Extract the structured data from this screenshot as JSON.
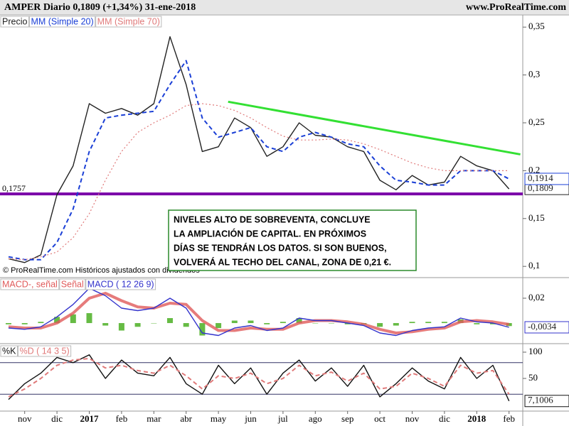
{
  "header": {
    "title": "AMPER   Diario    0,1809 (+1,34%)    31-ene-2018",
    "site": "www.ProRealTime.com"
  },
  "copyright": "© ProRealTime.com  Históricos ajustados con dividendos",
  "annotation": [
    "NIVELES ALTO DE SOBREVENTA, CONCLUYE",
    "LA AMPLIACIÓN DE CAPITAL. EN PRÓXIMOS",
    "DÍAS SE TENDRÁN LOS DATOS. SI SON BUENOS,",
    "VOLVERÁ AL TECHO DEL CANAL, ZONA DE 0,21 €."
  ],
  "chart_data": [
    {
      "type": "line",
      "categories": [
        null,
        "nov",
        null,
        "dic",
        null,
        "2017",
        null,
        "feb",
        null,
        "mar",
        null,
        "abr",
        null,
        "may",
        null,
        "jun",
        null,
        "jul",
        null,
        "ago",
        null,
        "sep",
        null,
        "oct",
        null,
        "nov",
        null,
        "dic",
        null,
        "2018",
        null,
        "feb"
      ],
      "ylim": [
        0.089,
        0.362
      ],
      "yticks": [
        {
          "value": 0.1,
          "label": "0,1"
        },
        {
          "value": 0.15,
          "label": "0,15"
        },
        {
          "value": 0.2,
          "label": "0,2"
        },
        {
          "value": 0.25,
          "label": "0,25"
        },
        {
          "value": 0.3,
          "label": "0,3"
        },
        {
          "value": 0.35,
          "label": "0,35"
        }
      ],
      "series": [
        {
          "name": "Precio",
          "color": "#222222",
          "style": "solid",
          "last_label": "0,1809",
          "values": [
            0.108,
            0.104,
            0.112,
            0.175,
            0.205,
            0.27,
            0.26,
            0.265,
            0.258,
            0.27,
            0.34,
            0.29,
            0.22,
            0.225,
            0.255,
            0.245,
            0.215,
            0.225,
            0.25,
            0.237,
            0.235,
            0.225,
            0.22,
            0.19,
            0.18,
            0.195,
            0.185,
            0.188,
            0.215,
            0.205,
            0.2,
            0.1809
          ]
        },
        {
          "name": "MM (Simple 20)",
          "color": "#1a3fd6",
          "style": "dashed",
          "last_label": "0,1914",
          "values": [
            0.11,
            0.107,
            0.107,
            0.125,
            0.16,
            0.22,
            0.255,
            0.258,
            0.26,
            0.262,
            0.29,
            0.315,
            0.255,
            0.235,
            0.24,
            0.245,
            0.225,
            0.22,
            0.235,
            0.24,
            0.235,
            0.228,
            0.225,
            0.205,
            0.19,
            0.188,
            0.185,
            0.185,
            0.2,
            0.2,
            0.2,
            0.1914
          ]
        },
        {
          "name": "MM (Simple 70)",
          "color": "#e07a7a",
          "style": "dotted",
          "values": [
            0.108,
            0.107,
            0.11,
            0.115,
            0.13,
            0.155,
            0.19,
            0.22,
            0.24,
            0.25,
            0.258,
            0.268,
            0.27,
            0.268,
            0.263,
            0.255,
            0.245,
            0.236,
            0.232,
            0.232,
            0.233,
            0.232,
            0.228,
            0.222,
            0.215,
            0.208,
            0.203,
            0.2,
            0.2,
            0.2,
            0.2,
            0.2
          ]
        }
      ],
      "hline": {
        "value": 0.1757,
        "label": "0,1757",
        "color": "#7a00a8"
      },
      "trendline": {
        "x": [
          13.6,
          31.7
        ],
        "values": [
          0.272,
          0.217
        ],
        "color": "#33e033"
      }
    },
    {
      "type": "macd",
      "ylim": [
        -0.0154,
        0.036
      ],
      "yticks": [
        {
          "value": 0.02,
          "label": "0,02"
        }
      ],
      "series": [
        {
          "name": "MACD-, señal",
          "color": "#66bb44",
          "style": "bar",
          "values": [
            -0.001,
            -0.001,
            0.001,
            0.005,
            0.007,
            0.008,
            -0.002,
            -0.006,
            -0.003,
            0,
            0.004,
            -0.003,
            -0.01,
            -0.004,
            0.002,
            0.002,
            -0.001,
            0.001,
            0.004,
            0,
            0,
            -0.001,
            -0.001,
            -0.003,
            -0.002,
            0.001,
            0.001,
            0.001,
            0.003,
            -0.001,
            -0.001,
            -0.0024
          ]
        },
        {
          "name": "Señal",
          "color": "#e05a5a",
          "style": "thick",
          "values": [
            -0.003,
            -0.004,
            -0.004,
            0,
            0.008,
            0.02,
            0.024,
            0.018,
            0.013,
            0.012,
            0.016,
            0.015,
            0.002,
            -0.006,
            -0.006,
            -0.004,
            -0.005,
            -0.005,
            0,
            0.002,
            0.002,
            0.001,
            -0.001,
            -0.005,
            -0.008,
            -0.007,
            -0.005,
            -0.004,
            0.001,
            0.002,
            0.001,
            -0.001
          ]
        },
        {
          "name": "MACD ( 12 26 9)",
          "color": "#3333cc",
          "style": "solid",
          "last_label": "-0,0034",
          "values": [
            -0.004,
            -0.005,
            -0.003,
            0.005,
            0.015,
            0.028,
            0.022,
            0.012,
            0.01,
            0.012,
            0.02,
            0.012,
            -0.008,
            -0.01,
            -0.004,
            -0.002,
            -0.006,
            -0.004,
            0.004,
            0.002,
            0.002,
            0,
            -0.002,
            -0.008,
            -0.01,
            -0.006,
            -0.004,
            -0.003,
            0.004,
            0.001,
            0,
            -0.0034
          ]
        }
      ]
    },
    {
      "type": "stochastic",
      "ylim": [
        -10.8,
        113.5
      ],
      "yticks": [
        50,
        100
      ],
      "hlines": [
        20,
        80
      ],
      "series": [
        {
          "name": "%K",
          "color": "#111111",
          "style": "solid",
          "last_label": "7,1006",
          "values": [
            10,
            40,
            60,
            90,
            80,
            95,
            50,
            85,
            60,
            55,
            90,
            40,
            20,
            75,
            40,
            70,
            20,
            60,
            85,
            45,
            70,
            35,
            75,
            15,
            40,
            70,
            45,
            30,
            90,
            50,
            75,
            7.1006
          ]
        },
        {
          "name": "%D ( 14 3 5)",
          "color": "#e07a7a",
          "style": "dashed",
          "values": [
            15,
            30,
            50,
            75,
            85,
            88,
            70,
            75,
            65,
            60,
            75,
            55,
            30,
            55,
            50,
            60,
            40,
            50,
            75,
            55,
            62,
            45,
            60,
            30,
            35,
            60,
            50,
            35,
            75,
            60,
            65,
            20
          ]
        }
      ]
    }
  ]
}
